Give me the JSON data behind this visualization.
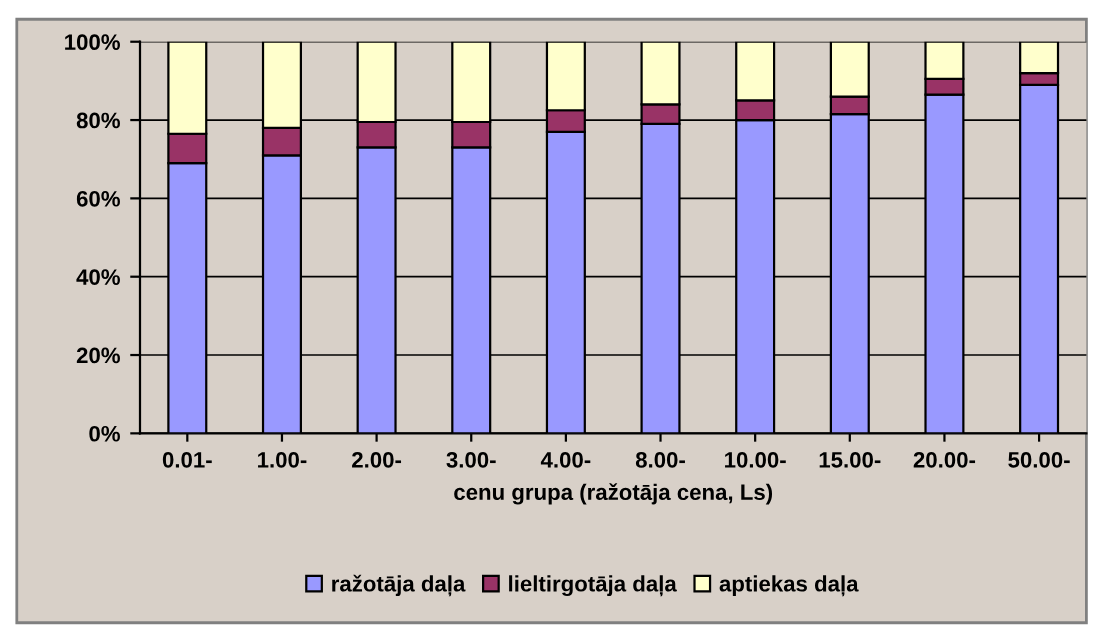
{
  "chart_data": {
    "type": "bar",
    "stacked": true,
    "xlabel": "cenu grupa (ražotāja cena, Ls)",
    "categories": [
      "0.01-",
      "1.00-",
      "2.00-",
      "3.00-",
      "4.00-",
      "8.00-",
      "10.00-",
      "15.00-",
      "20.00-",
      "50.00-"
    ],
    "series": [
      {
        "name": "ražotāja daļa",
        "color": "#9999ff",
        "values": [
          69,
          71,
          73,
          73,
          77,
          79,
          80,
          81.5,
          86.5,
          89
        ]
      },
      {
        "name": "lieltirgotāja daļa",
        "color": "#993366",
        "values": [
          7.5,
          7,
          6.5,
          6.5,
          5.5,
          5,
          5,
          4.5,
          4,
          3
        ]
      },
      {
        "name": "aptiekas daļa",
        "color": "#ffffcc",
        "values": [
          23.5,
          22,
          20.5,
          20.5,
          17.5,
          16,
          15,
          14,
          9.5,
          8
        ]
      }
    ],
    "ylim": [
      0,
      100
    ],
    "yticks": [
      {
        "value": 0,
        "label": "0%"
      },
      {
        "value": 20,
        "label": "20%"
      },
      {
        "value": 40,
        "label": "40%"
      },
      {
        "value": 60,
        "label": "60%"
      },
      {
        "value": 80,
        "label": "80%"
      },
      {
        "value": 100,
        "label": "100%"
      }
    ],
    "grid": "y",
    "legend": "bottom"
  }
}
